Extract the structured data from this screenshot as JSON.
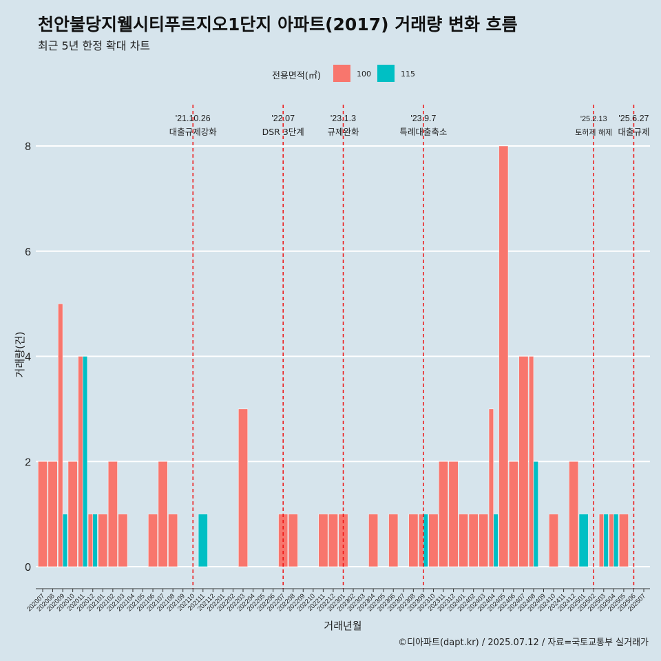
{
  "title": "천안불당지웰시티푸르지오1단지 아파트(2017) 거래량 변화 흐름",
  "subtitle": "최근 5년 한정 확대 차트",
  "caption": "©디아파트(dapt.kr) / 2025.07.12 / 자료=국토교통부 실거래가",
  "legend": {
    "title": "전용면적(㎡)",
    "items": [
      {
        "label": "100",
        "color": "#f8766d"
      },
      {
        "label": "115",
        "color": "#00bfc4"
      }
    ]
  },
  "chart_data": {
    "type": "bar",
    "xlabel": "거래년월",
    "ylabel": "거래량(건)",
    "ylim": [
      0,
      8
    ],
    "yticks": [
      0,
      2,
      4,
      6,
      8
    ],
    "grid": true,
    "legend_position": "top",
    "categories": [
      "202007",
      "202008",
      "202009",
      "202010",
      "202011",
      "202012",
      "202101",
      "202102",
      "202103",
      "202104",
      "202105",
      "202106",
      "202107",
      "202108",
      "202109",
      "202110",
      "202111",
      "202112",
      "202201",
      "202202",
      "202203",
      "202204",
      "202205",
      "202206",
      "202207",
      "202208",
      "202209",
      "202210",
      "202211",
      "202212",
      "202301",
      "202302",
      "202303",
      "202304",
      "202305",
      "202306",
      "202307",
      "202308",
      "202309",
      "202310",
      "202311",
      "202312",
      "202401",
      "202402",
      "202403",
      "202404",
      "202405",
      "202406",
      "202407",
      "202408",
      "202409",
      "202410",
      "202411",
      "202412",
      "202501",
      "202502",
      "202503",
      "202504",
      "202505",
      "202506",
      "202507"
    ],
    "series": [
      {
        "name": "100",
        "color": "#f8766d",
        "values": [
          2,
          2,
          5,
          2,
          4,
          1,
          1,
          2,
          1,
          0,
          0,
          1,
          2,
          1,
          0,
          0,
          0,
          0,
          0,
          0,
          3,
          0,
          0,
          0,
          1,
          1,
          0,
          0,
          1,
          1,
          1,
          0,
          0,
          1,
          0,
          1,
          0,
          1,
          1,
          1,
          2,
          2,
          1,
          1,
          1,
          3,
          8,
          2,
          4,
          4,
          0,
          1,
          0,
          2,
          0,
          0,
          1,
          1,
          1,
          0,
          0
        ]
      },
      {
        "name": "115",
        "color": "#00bfc4",
        "values": [
          0,
          0,
          1,
          0,
          4,
          1,
          0,
          0,
          0,
          0,
          0,
          0,
          0,
          0,
          0,
          0,
          1,
          0,
          0,
          0,
          0,
          0,
          0,
          0,
          0,
          0,
          0,
          0,
          0,
          0,
          0,
          0,
          0,
          0,
          0,
          0,
          0,
          0,
          1,
          0,
          0,
          0,
          0,
          0,
          0,
          1,
          0,
          0,
          0,
          2,
          0,
          0,
          0,
          0,
          1,
          0,
          1,
          1,
          0,
          0,
          0
        ]
      }
    ],
    "events": [
      {
        "date": "'21.10.26",
        "label": "대출규제강화",
        "category": "202110"
      },
      {
        "date": "'22.07",
        "label": "DSR 3단계",
        "category": "202207"
      },
      {
        "date": "'23.1.3",
        "label": "규제완화",
        "category": "202301"
      },
      {
        "date": "'23.9.7",
        "label": "특례대출축소",
        "category": "202309"
      },
      {
        "date": "'25.2.13",
        "label": "토허제 해제",
        "category": "202502",
        "small": true
      },
      {
        "date": "'25.6.27",
        "label": "대출규제",
        "category": "202506"
      }
    ]
  }
}
